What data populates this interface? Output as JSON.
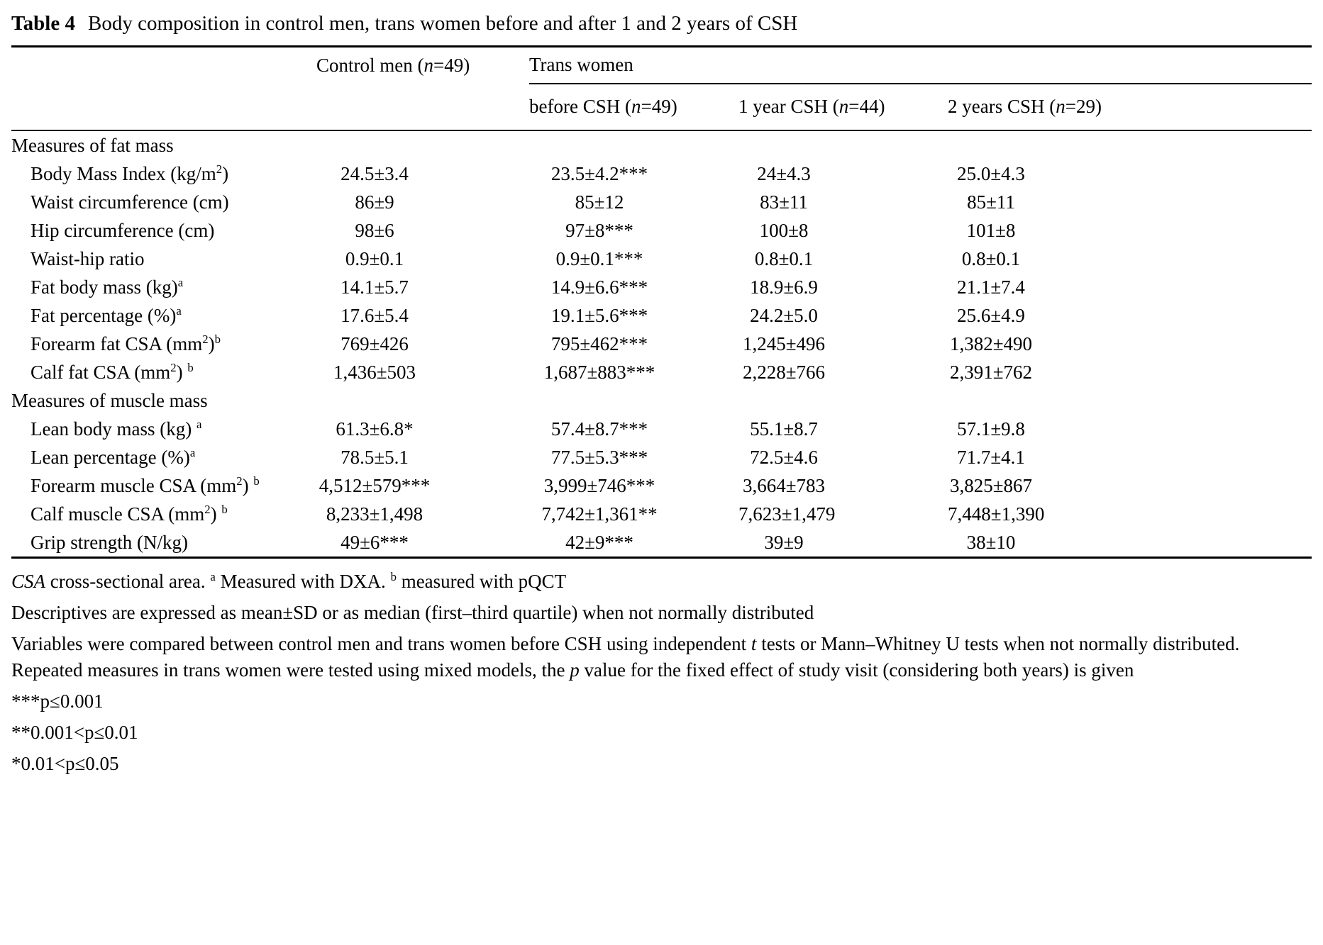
{
  "title": {
    "bold": "Table 4",
    "text": "Body composition in control men, trans women before and after 1 and 2 years of CSH"
  },
  "table": {
    "headers": {
      "control": "Control men (_{n}=49)",
      "group": "Trans women",
      "sub": [
        "before CSH (_{n}=49)",
        "1 year CSH (_{n}=44)",
        "2 years CSH (_{n}=29)"
      ]
    },
    "rows": [
      {
        "type": "section",
        "label": "Measures of fat mass",
        "cells": [
          "",
          "",
          "",
          ""
        ]
      },
      {
        "type": "data",
        "label": "Body Mass Index (kg/m^{2})",
        "cells": [
          "24.5±3.4",
          "23.5±4.2***",
          "24±4.3",
          "25.0±4.3"
        ]
      },
      {
        "type": "data",
        "label": "Waist circumference (cm)",
        "cells": [
          "86±9",
          "85±12",
          "83±11",
          "85±11"
        ]
      },
      {
        "type": "data",
        "label": "Hip circumference (cm)",
        "cells": [
          "98±6",
          "97±8***",
          "100±8",
          "101±8"
        ]
      },
      {
        "type": "data",
        "label": "Waist-hip ratio",
        "cells": [
          "0.9±0.1",
          "0.9±0.1***",
          "0.8±0.1",
          "0.8±0.1"
        ]
      },
      {
        "type": "data",
        "label": "Fat body mass (kg)^{a}",
        "cells": [
          "14.1±5.7",
          "14.9±6.6***",
          "18.9±6.9",
          "21.1±7.4"
        ]
      },
      {
        "type": "data",
        "label": "Fat percentage (%)^{a}",
        "cells": [
          "17.6±5.4",
          "19.1±5.6***",
          "24.2±5.0",
          "25.6±4.9"
        ]
      },
      {
        "type": "data",
        "label": "Forearm fat CSA (mm^{2})^{b}",
        "cells": [
          "769±426",
          "795±462***",
          "1,245±496",
          "1,382±490"
        ]
      },
      {
        "type": "data",
        "label": "Calf fat CSA (mm^{2}) ^{b}",
        "cells": [
          "1,436±503",
          "1,687±883***",
          "2,228±766",
          "2,391±762"
        ]
      },
      {
        "type": "section",
        "label": "Measures of muscle mass",
        "cells": [
          "",
          "",
          "",
          ""
        ]
      },
      {
        "type": "data",
        "label": "Lean body mass (kg) ^{a}",
        "cells": [
          "61.3±6.8*",
          "57.4±8.7***",
          "55.1±8.7",
          "57.1±9.8"
        ]
      },
      {
        "type": "data",
        "label": "Lean percentage (%)^{a}",
        "cells": [
          "78.5±5.1",
          "77.5±5.3***",
          "72.5±4.6",
          "71.7±4.1"
        ]
      },
      {
        "type": "data",
        "label": "Forearm muscle CSA (mm^{2}) ^{b}",
        "cells": [
          "4,512±579***",
          "3,999±746***",
          "3,664±783",
          "3,825±867"
        ]
      },
      {
        "type": "data",
        "label": "Calf muscle CSA (mm^{2}) ^{b}",
        "cells": [
          "8,233±1,498",
          "7,742±1,361**",
          "7,623±1,479",
          "7,448±1,390"
        ]
      },
      {
        "type": "data",
        "label": "Grip strength (N/kg)",
        "cells": [
          "49±6***",
          "42±9***",
          "39±9",
          "38±10"
        ]
      }
    ]
  },
  "footnotes": [
    "_{CSA} cross-sectional area. ^{a} Measured with DXA. ^{b} measured with pQCT",
    "Descriptives are expressed as mean±SD or as median (first–third quartile) when not normally distributed",
    "Variables were compared between control men and trans women before CSH using independent _{t} tests or Mann–Whitney U tests when not normally distributed. Repeated measures in trans women were tested using mixed models, the _{p} value for the fixed effect of study visit (considering both years) is given",
    "***p≤0.001",
    "**0.001<p≤0.01",
    "*0.01<p≤0.05"
  ]
}
